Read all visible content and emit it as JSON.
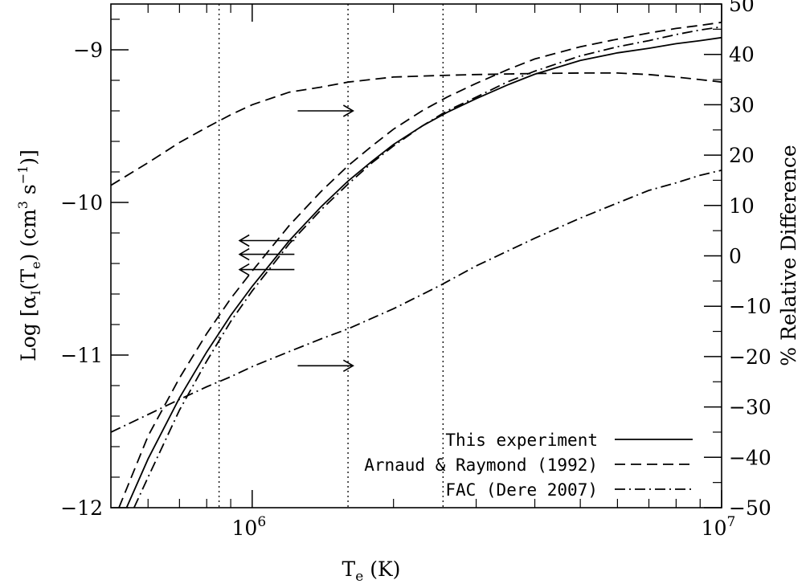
{
  "chart_data": {
    "type": "line",
    "xlabel_main": "T",
    "xlabel_sub": "e",
    "xlabel_unit": " (K)",
    "ylabel_left": "Log [α",
    "ylabel_left_sub1": "I",
    "ylabel_left_mid": "(T",
    "ylabel_left_sub2": "e",
    "ylabel_left_tail": ") (cm",
    "ylabel_left_sup1": "3",
    "ylabel_left_tail2": " s",
    "ylabel_left_sup2": "−1",
    "ylabel_left_end": ")]",
    "ylabel_right": "% Relative Difference",
    "x_scale": "log",
    "xlim": [
      500000,
      10000000
    ],
    "ylim_left": [
      -12,
      -8.7
    ],
    "ylim_right": [
      -50,
      50
    ],
    "x_ticks": [
      {
        "value": 1000000,
        "base": "10",
        "exp": "6"
      },
      {
        "value": 10000000,
        "base": "10",
        "exp": "7"
      }
    ],
    "y_left_ticks": [
      {
        "value": -12,
        "label": "−12"
      },
      {
        "value": -11,
        "label": "−11"
      },
      {
        "value": -10,
        "label": "−10"
      },
      {
        "value": -9,
        "label": "−9"
      }
    ],
    "y_right_ticks": [
      {
        "value": -50,
        "label": "−50"
      },
      {
        "value": -40,
        "label": "−40"
      },
      {
        "value": -30,
        "label": "−30"
      },
      {
        "value": -20,
        "label": "−20"
      },
      {
        "value": -10,
        "label": "−10"
      },
      {
        "value": 0,
        "label": "0"
      },
      {
        "value": 10,
        "label": "10"
      },
      {
        "value": 20,
        "label": "20"
      },
      {
        "value": 30,
        "label": "30"
      },
      {
        "value": 40,
        "label": "40"
      },
      {
        "value": 50,
        "label": "50"
      }
    ],
    "vertical_lines_x": [
      850000,
      1600000,
      2550000
    ],
    "series": [
      {
        "name": "This experiment",
        "style": "solid",
        "axis": "left",
        "x": [
          540000,
          600000,
          700000,
          800000,
          900000,
          1000000,
          1200000,
          1400000,
          1600000,
          1800000,
          2000000,
          2300000,
          2600000,
          3000000,
          3500000,
          4000000,
          5000000,
          6000000,
          7000000,
          8000000,
          9000000,
          10000000
        ],
        "y": [
          -12.0,
          -11.68,
          -11.28,
          -10.98,
          -10.74,
          -10.55,
          -10.25,
          -10.03,
          -9.86,
          -9.73,
          -9.62,
          -9.5,
          -9.41,
          -9.32,
          -9.23,
          -9.16,
          -9.07,
          -9.02,
          -8.99,
          -8.96,
          -8.94,
          -8.92
        ]
      },
      {
        "name": "Arnaud & Raymond (1992)",
        "style": "dashed",
        "axis": "left",
        "x": [
          520000,
          600000,
          700000,
          800000,
          900000,
          1000000,
          1200000,
          1400000,
          1600000,
          1800000,
          2000000,
          2300000,
          2600000,
          3000000,
          3500000,
          4000000,
          5000000,
          6000000,
          7000000,
          8000000,
          9000000,
          10000000
        ],
        "y": [
          -12.0,
          -11.53,
          -11.15,
          -10.86,
          -10.63,
          -10.45,
          -10.15,
          -9.93,
          -9.76,
          -9.63,
          -9.52,
          -9.4,
          -9.31,
          -9.22,
          -9.13,
          -9.06,
          -8.98,
          -8.93,
          -8.89,
          -8.86,
          -8.84,
          -8.82
        ]
      },
      {
        "name": "FAC (Dere 2007)",
        "style": "dashdot",
        "axis": "left",
        "x": [
          560000,
          600000,
          700000,
          800000,
          900000,
          1000000,
          1200000,
          1400000,
          1600000,
          1800000,
          2000000,
          2300000,
          2600000,
          3000000,
          3500000,
          4000000,
          5000000,
          6000000,
          7000000,
          8000000,
          9000000,
          10000000
        ],
        "y": [
          -12.0,
          -11.8,
          -11.36,
          -11.04,
          -10.78,
          -10.58,
          -10.27,
          -10.05,
          -9.88,
          -9.74,
          -9.63,
          -9.5,
          -9.4,
          -9.31,
          -9.21,
          -9.14,
          -9.04,
          -8.98,
          -8.94,
          -8.9,
          -8.87,
          -8.85
        ]
      },
      {
        "name": "",
        "style": "dashed",
        "axis": "right",
        "x": [
          500000,
          600000,
          700000,
          800000,
          900000,
          1000000,
          1200000,
          1400000,
          1600000,
          2000000,
          2500000,
          3000000,
          4000000,
          5000000,
          6000000,
          7000000,
          8000000,
          9000000,
          10000000
        ],
        "y": [
          14,
          18.5,
          22.5,
          25.5,
          28,
          30,
          32.5,
          33.5,
          34.5,
          35.5,
          35.8,
          36,
          36.2,
          36.3,
          36.3,
          36,
          35.5,
          35,
          34.5
        ]
      },
      {
        "name": "",
        "style": "dashdot",
        "axis": "right",
        "x": [
          500000,
          600000,
          700000,
          800000,
          900000,
          1000000,
          1200000,
          1400000,
          1600000,
          2000000,
          2500000,
          3000000,
          4000000,
          5000000,
          6000000,
          7000000,
          8000000,
          9000000,
          10000000
        ],
        "y": [
          -35,
          -31.5,
          -28.5,
          -26,
          -24,
          -22,
          -19,
          -16.5,
          -14.5,
          -10.5,
          -6,
          -2,
          3.5,
          7.5,
          10.5,
          13,
          14.5,
          16,
          17
        ]
      }
    ],
    "arrows": [
      {
        "x_from": 1250000,
        "x_to": 1640000,
        "y_left": -9.4,
        "direction": "right"
      },
      {
        "x_from": 1230000,
        "x_to": 940000,
        "y_left": -10.25,
        "direction": "left"
      },
      {
        "x_from": 1230000,
        "x_to": 940000,
        "y_left": -10.34,
        "direction": "left"
      },
      {
        "x_from": 1230000,
        "x_to": 940000,
        "y_left": -10.44,
        "direction": "left"
      },
      {
        "x_from": 1250000,
        "x_to": 1640000,
        "y_left": -11.07,
        "direction": "right"
      }
    ],
    "legend": {
      "placement": "bottom-right",
      "entries": [
        {
          "label": "This experiment",
          "style": "solid"
        },
        {
          "label": "Arnaud & Raymond (1992)",
          "style": "dashed"
        },
        {
          "label": "FAC (Dere 2007)",
          "style": "dashdot"
        }
      ]
    }
  }
}
